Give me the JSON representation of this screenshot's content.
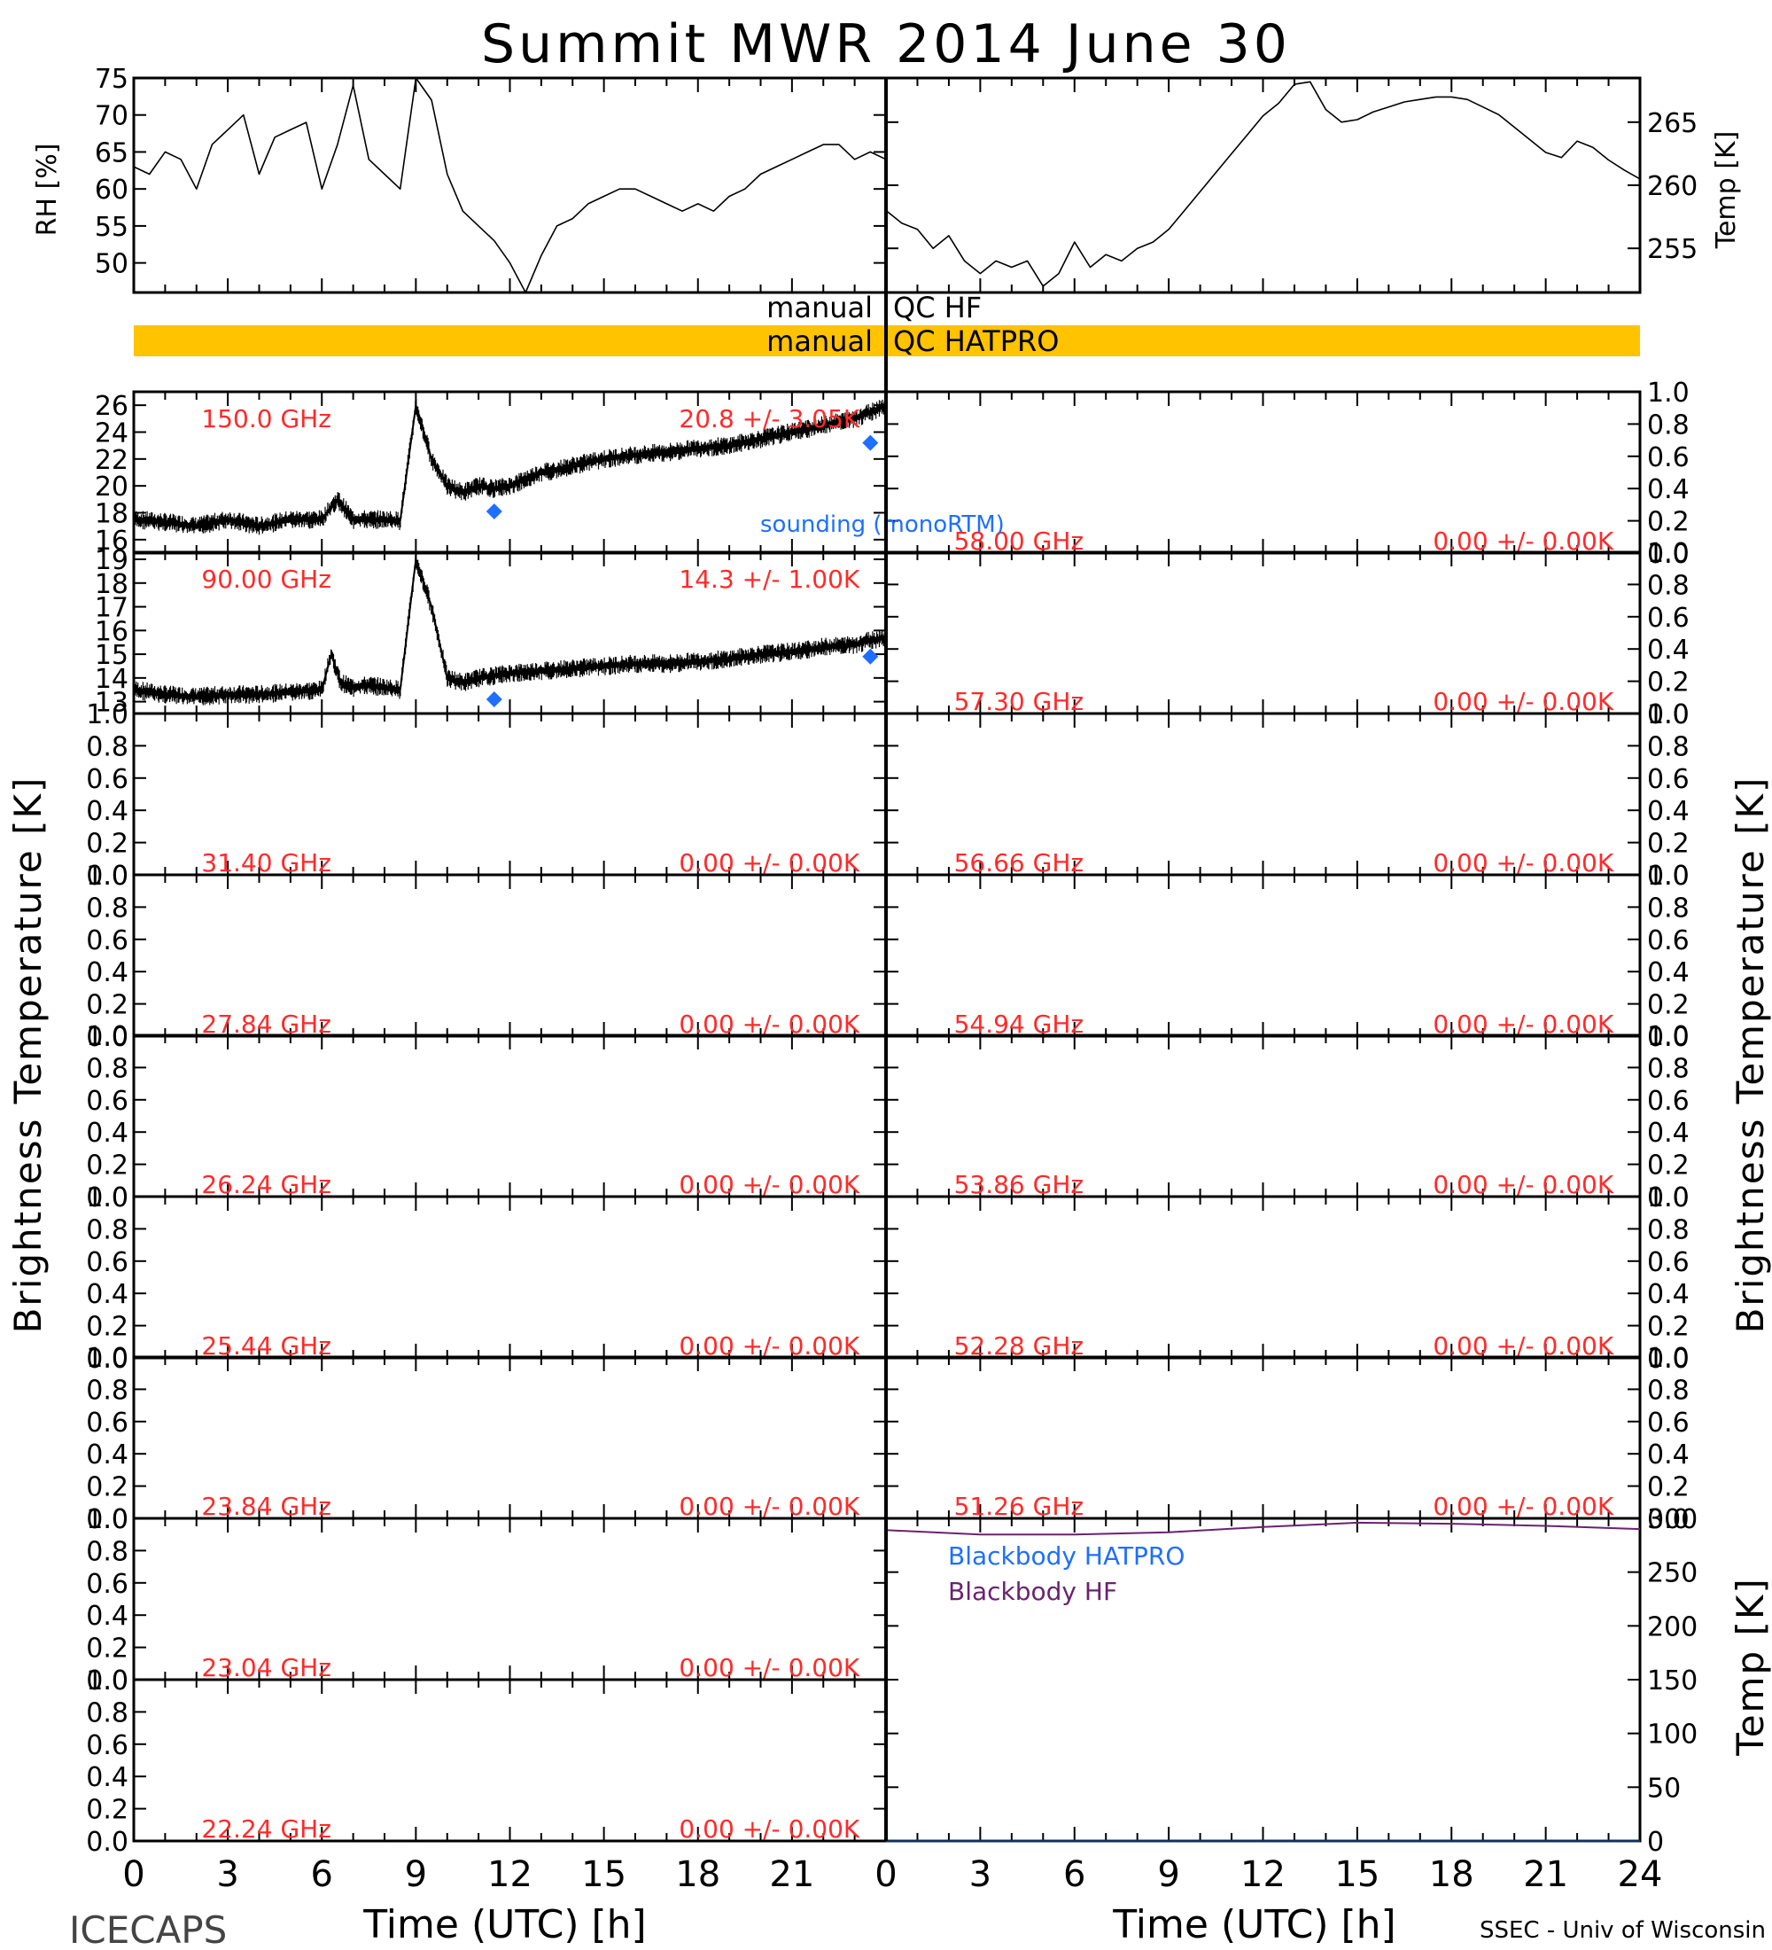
{
  "title": "Summit MWR 2014 June 30",
  "footer": {
    "left": "ICECAPS",
    "right": "SSEC - Univ of Wisconsin"
  },
  "qc": {
    "hf_label": "manual QC HF",
    "hatpro_label": "manual QC HATPRO",
    "hatpro_color": "#FFC300"
  },
  "colors": {
    "label_red": "#FF2A2A",
    "sounding_blue": "#1E6FFF",
    "bb_purple": "#6B2270",
    "line": "#000000"
  },
  "axes": {
    "rh_ylabel": "RH [%]",
    "temp_ylabel": "Temp [K]",
    "tb_ylabel": "Brightness Temperature [K]",
    "bb_ylabel": "Temp [K]",
    "xlabel": "Time (UTC) [h]",
    "xticks": [
      "0",
      "3",
      "6",
      "9",
      "12",
      "15",
      "18",
      "21",
      "24"
    ]
  },
  "chart_data": [
    {
      "type": "line",
      "id": "rh",
      "title": "",
      "xlabel": "",
      "ylabel": "RH [%]",
      "xlim": [
        0,
        24
      ],
      "ylim": [
        46,
        75
      ],
      "yticks": [
        "50",
        "55",
        "60",
        "65",
        "70",
        "75"
      ],
      "x": [
        0,
        0.5,
        1,
        1.5,
        2,
        2.5,
        3,
        3.5,
        4,
        4.5,
        5,
        5.5,
        6,
        6.5,
        7,
        7.5,
        8,
        8.5,
        9,
        9.5,
        10,
        10.5,
        11,
        11.5,
        12,
        12.5,
        13,
        13.5,
        14,
        14.5,
        15,
        15.5,
        16,
        16.5,
        17,
        17.5,
        18,
        18.5,
        19,
        19.5,
        20,
        20.5,
        21,
        21.5,
        22,
        22.5,
        23,
        23.5,
        24
      ],
      "y": [
        63,
        62,
        65,
        64,
        60,
        66,
        68,
        70,
        62,
        67,
        68,
        69,
        60,
        66,
        74,
        64,
        62,
        60,
        75,
        72,
        62,
        57,
        55,
        53,
        50,
        46,
        51,
        55,
        56,
        58,
        59,
        60,
        60,
        59,
        58,
        57,
        58,
        57,
        59,
        60,
        62,
        63,
        64,
        65,
        66,
        66,
        64,
        65,
        64
      ]
    },
    {
      "type": "line",
      "id": "temp",
      "title": "",
      "xlabel": "",
      "ylabel": "Temp [K]",
      "xlim": [
        0,
        24
      ],
      "ylim": [
        251.5,
        268.5
      ],
      "yticks": [
        "255",
        "260",
        "265"
      ],
      "x": [
        0,
        0.5,
        1,
        1.5,
        2,
        2.5,
        3,
        3.5,
        4,
        4.5,
        5,
        5.5,
        6,
        6.5,
        7,
        7.5,
        8,
        8.5,
        9,
        9.5,
        10,
        10.5,
        11,
        11.5,
        12,
        12.5,
        13,
        13.5,
        14,
        14.5,
        15,
        15.5,
        16,
        16.5,
        17,
        17.5,
        18,
        18.5,
        19,
        19.5,
        20,
        20.5,
        21,
        21.5,
        22,
        22.5,
        23,
        23.5,
        24
      ],
      "y": [
        258,
        257,
        256.5,
        255,
        256,
        254,
        253,
        254,
        253.5,
        254,
        252,
        253,
        255.5,
        253.5,
        254.5,
        254,
        255,
        255.5,
        256.5,
        258,
        259.5,
        261,
        262.5,
        264,
        265.5,
        266.5,
        268,
        268.2,
        266,
        265,
        265.2,
        265.8,
        266.2,
        266.6,
        266.8,
        267,
        267,
        266.8,
        266.2,
        265.6,
        264.6,
        263.6,
        262.6,
        262.2,
        263.5,
        263,
        262,
        261.2,
        260.5
      ]
    },
    {
      "type": "line",
      "id": "tb_150",
      "freq_label": "150.0 GHz",
      "stats_label": "20.8 +/- 3.05K",
      "ylabel": "",
      "xlim": [
        0,
        24
      ],
      "ylim": [
        15,
        27
      ],
      "yticks": [
        "16",
        "18",
        "20",
        "22",
        "24",
        "26"
      ],
      "x": [
        0,
        1,
        2,
        3,
        4,
        5,
        6,
        6.5,
        7,
        7.5,
        8,
        8.5,
        9,
        9.5,
        10,
        10.5,
        11,
        11.5,
        12,
        12.5,
        13,
        13.5,
        14,
        15,
        16,
        17,
        18,
        19,
        20,
        21,
        22,
        23,
        23.5,
        24
      ],
      "y": [
        17.5,
        17.3,
        17,
        17.5,
        17,
        17.5,
        17.5,
        19,
        17.5,
        17.5,
        17.5,
        17.4,
        26,
        22,
        20,
        19.5,
        20,
        19.8,
        20,
        20.5,
        21,
        21.2,
        21.5,
        22,
        22.3,
        22.5,
        22.8,
        23,
        23.5,
        24,
        24.5,
        25,
        25.5,
        26
      ],
      "sounding": {
        "label": "sounding (monoRTM)",
        "x": [
          11.5,
          23.5
        ],
        "y": [
          18.1,
          23.2
        ]
      }
    },
    {
      "type": "line",
      "id": "tb_90",
      "freq_label": "90.00 GHz",
      "stats_label": "14.3 +/- 1.00K",
      "ylabel": "",
      "xlim": [
        0,
        24
      ],
      "ylim": [
        12.5,
        19.3
      ],
      "yticks": [
        "13",
        "14",
        "15",
        "16",
        "17",
        "18",
        "19"
      ],
      "x": [
        0,
        1,
        2,
        3,
        4,
        5,
        6,
        6.3,
        6.6,
        7,
        7.5,
        8,
        8.5,
        9,
        9.5,
        10,
        10.5,
        11,
        11.5,
        12,
        13,
        14,
        15,
        16,
        17,
        18,
        19,
        20,
        21,
        22,
        23,
        23.5,
        24
      ],
      "y": [
        13.5,
        13.3,
        13.2,
        13.3,
        13.3,
        13.4,
        13.5,
        15,
        13.8,
        13.6,
        13.7,
        13.6,
        13.5,
        19,
        17,
        14,
        13.8,
        14,
        14.1,
        14.2,
        14.3,
        14.4,
        14.5,
        14.6,
        14.6,
        14.7,
        14.8,
        15,
        15.1,
        15.3,
        15.4,
        15.6,
        15.7
      ],
      "sounding": {
        "x": [
          11.5,
          23.5
        ],
        "y": [
          13.1,
          14.9
        ]
      }
    },
    {
      "type": "line",
      "id": "tb_3140",
      "freq_label": "31.40 GHz",
      "stats_label": "0.00 +/- 0.00K",
      "xlim": [
        0,
        24
      ],
      "ylim": [
        0,
        1
      ],
      "yticks": [
        "0.0",
        "0.2",
        "0.4",
        "0.6",
        "0.8",
        "1.0"
      ]
    },
    {
      "type": "line",
      "id": "tb_2784",
      "freq_label": "27.84 GHz",
      "stats_label": "0.00 +/- 0.00K",
      "xlim": [
        0,
        24
      ],
      "ylim": [
        0,
        1
      ],
      "yticks": [
        "0.0",
        "0.2",
        "0.4",
        "0.6",
        "0.8",
        "1.0"
      ]
    },
    {
      "type": "line",
      "id": "tb_2624",
      "freq_label": "26.24 GHz",
      "stats_label": "0.00 +/- 0.00K",
      "xlim": [
        0,
        24
      ],
      "ylim": [
        0,
        1
      ],
      "yticks": [
        "0.0",
        "0.2",
        "0.4",
        "0.6",
        "0.8",
        "1.0"
      ]
    },
    {
      "type": "line",
      "id": "tb_2544",
      "freq_label": "25.44 GHz",
      "stats_label": "0.00 +/- 0.00K",
      "xlim": [
        0,
        24
      ],
      "ylim": [
        0,
        1
      ],
      "yticks": [
        "0.0",
        "0.2",
        "0.4",
        "0.6",
        "0.8",
        "1.0"
      ]
    },
    {
      "type": "line",
      "id": "tb_2384",
      "freq_label": "23.84 GHz",
      "stats_label": "0.00 +/- 0.00K",
      "xlim": [
        0,
        24
      ],
      "ylim": [
        0,
        1
      ],
      "yticks": [
        "0.0",
        "0.2",
        "0.4",
        "0.6",
        "0.8",
        "1.0"
      ]
    },
    {
      "type": "line",
      "id": "tb_2304",
      "freq_label": "23.04 GHz",
      "stats_label": "0.00 +/- 0.00K",
      "xlim": [
        0,
        24
      ],
      "ylim": [
        0,
        1
      ],
      "yticks": [
        "0.0",
        "0.2",
        "0.4",
        "0.6",
        "0.8",
        "1.0"
      ]
    },
    {
      "type": "line",
      "id": "tb_2224",
      "freq_label": "22.24 GHz",
      "stats_label": "0.00 +/- 0.00K",
      "xlim": [
        0,
        24
      ],
      "ylim": [
        0,
        1
      ],
      "yticks": [
        "0.0",
        "0.2",
        "0.4",
        "0.6",
        "0.8",
        "1.0"
      ]
    },
    {
      "type": "line",
      "id": "tb_5800",
      "freq_label": "58.00 GHz",
      "stats_label": "0.00 +/- 0.00K",
      "xlim": [
        0,
        24
      ],
      "ylim": [
        0,
        1
      ],
      "yticks": [
        "0.0",
        "0.2",
        "0.4",
        "0.6",
        "0.8",
        "1.0"
      ]
    },
    {
      "type": "line",
      "id": "tb_5730",
      "freq_label": "57.30 GHz",
      "stats_label": "0.00 +/- 0.00K",
      "xlim": [
        0,
        24
      ],
      "ylim": [
        0,
        1
      ],
      "yticks": [
        "0.0",
        "0.2",
        "0.4",
        "0.6",
        "0.8",
        "1.0"
      ]
    },
    {
      "type": "line",
      "id": "tb_5666",
      "freq_label": "56.66 GHz",
      "stats_label": "0.00 +/- 0.00K",
      "xlim": [
        0,
        24
      ],
      "ylim": [
        0,
        1
      ],
      "yticks": [
        "0.0",
        "0.2",
        "0.4",
        "0.6",
        "0.8",
        "1.0"
      ]
    },
    {
      "type": "line",
      "id": "tb_5484",
      "freq_label": "54.94 GHz",
      "stats_label": "0.00 +/- 0.00K",
      "xlim": [
        0,
        24
      ],
      "ylim": [
        0,
        1
      ],
      "yticks": [
        "0.0",
        "0.2",
        "0.4",
        "0.6",
        "0.8",
        "1.0"
      ]
    },
    {
      "type": "line",
      "id": "tb_5386",
      "freq_label": "53.86 GHz",
      "stats_label": "0.00 +/- 0.00K",
      "xlim": [
        0,
        24
      ],
      "ylim": [
        0,
        1
      ],
      "yticks": [
        "0.0",
        "0.2",
        "0.4",
        "0.6",
        "0.8",
        "1.0"
      ]
    },
    {
      "type": "line",
      "id": "tb_5228",
      "freq_label": "52.28 GHz",
      "stats_label": "0.00 +/- 0.00K",
      "xlim": [
        0,
        24
      ],
      "ylim": [
        0,
        1
      ],
      "yticks": [
        "0.0",
        "0.2",
        "0.4",
        "0.6",
        "0.8",
        "1.0"
      ]
    },
    {
      "type": "line",
      "id": "tb_5126",
      "freq_label": "51.26 GHz",
      "stats_label": "0.00 +/- 0.00K",
      "xlim": [
        0,
        24
      ],
      "ylim": [
        0,
        1
      ],
      "yticks": [
        "0.0",
        "0.2",
        "0.4",
        "0.6",
        "0.8",
        "1.0"
      ]
    },
    {
      "type": "line",
      "id": "blackbody",
      "ylabel": "Temp [K]",
      "xlim": [
        0,
        24
      ],
      "ylim": [
        0,
        300
      ],
      "yticks": [
        "0",
        "50",
        "100",
        "150",
        "200",
        "250",
        "300"
      ],
      "legend": [
        "Blackbody HATPRO",
        "Blackbody HF"
      ],
      "series": [
        {
          "name": "Blackbody HF",
          "x": [
            0,
            3,
            6,
            9,
            12,
            15,
            18,
            21,
            24
          ],
          "y": [
            289,
            285,
            285,
            287,
            292,
            296,
            295,
            293,
            290
          ]
        },
        {
          "name": "Blackbody HATPRO",
          "x": [
            0,
            24
          ],
          "y": [
            0,
            0
          ]
        }
      ]
    }
  ]
}
